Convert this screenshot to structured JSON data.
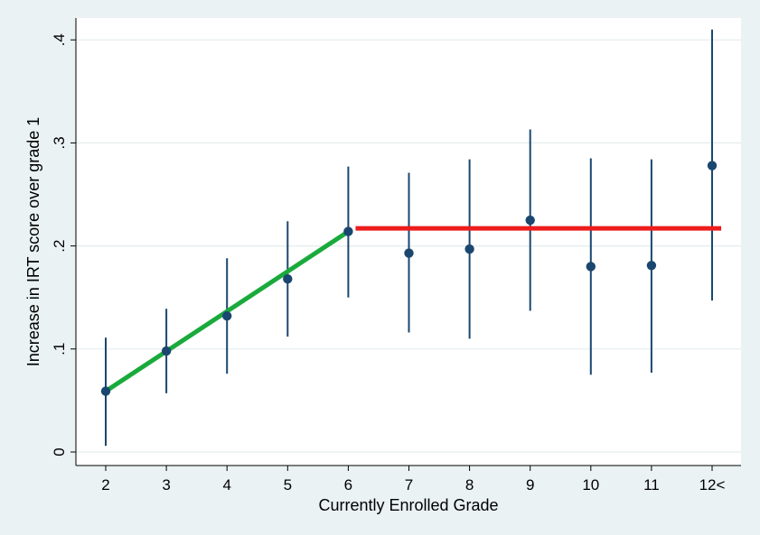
{
  "chart_data": {
    "type": "scatter",
    "title": "",
    "xlabel": "Currently Enrolled Grade",
    "ylabel": "Increase in IRT score over grade 1",
    "categories": [
      "2",
      "3",
      "4",
      "5",
      "6",
      "7",
      "8",
      "9",
      "10",
      "11",
      "12<"
    ],
    "points": [
      0.059,
      0.098,
      0.132,
      0.168,
      0.214,
      0.193,
      0.197,
      0.225,
      0.18,
      0.181,
      0.278
    ],
    "ci_low": [
      0.006,
      0.057,
      0.076,
      0.112,
      0.15,
      0.116,
      0.11,
      0.137,
      0.075,
      0.077,
      0.147
    ],
    "ci_high": [
      0.111,
      0.139,
      0.188,
      0.224,
      0.277,
      0.271,
      0.284,
      0.313,
      0.285,
      0.284,
      0.41
    ],
    "ylim": [
      -0.01,
      0.42
    ],
    "yticks": [
      0,
      0.1,
      0.2,
      0.3,
      0.4
    ],
    "ytick_labels": [
      "0",
      ".1",
      ".2",
      ".3",
      ".4"
    ],
    "grid": true,
    "fit_lines": [
      {
        "color": "#1aaa3c",
        "from": [
          2,
          0.059
        ],
        "to": [
          6,
          0.214
        ]
      },
      {
        "color": "#ee1c1c",
        "from": [
          6.12,
          0.217
        ],
        "to": [
          12.15,
          0.217
        ]
      }
    ],
    "colors": {
      "background": "#eaf2f3",
      "plot_area": "#ffffff",
      "markers": "#1a476f",
      "grid": "#e4ecee"
    }
  }
}
